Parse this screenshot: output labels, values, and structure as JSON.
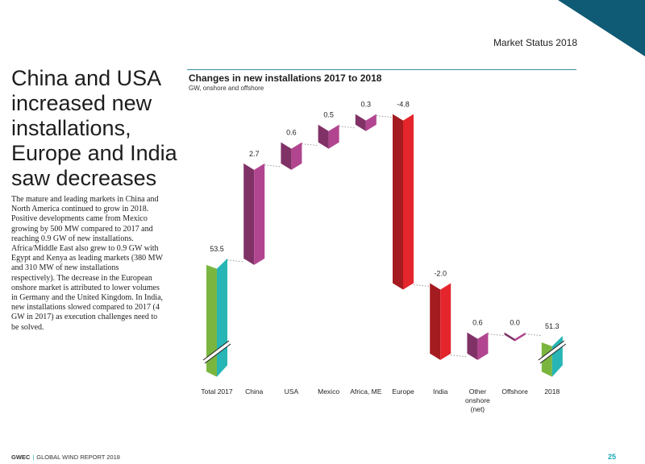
{
  "header": {
    "label": "Market Status 2018"
  },
  "headline": "China and USA increased new installations, Europe and India saw decreases",
  "body": "The mature and leading markets in China and North America continued to grow in 2018. Positive developments came from Mexico growing by 500 MW compared to 2017 and reaching 0.9 GW of new installations. Africa/Middle East also grew to 0.9 GW with Egypt and Kenya as leading markets (380 MW and 310 MW of new installations respectively). The decrease in the European onshore market is attributed to lower volumes in Germany and the United Kingdom. In India, new installations slowed compared to 2017 (4 GW in 2017) as execution challenges need to be solved.",
  "footer": {
    "brand": "GWEC",
    "separator": "|",
    "report": "GLOBAL WIND REPORT 2018",
    "page": "25"
  },
  "colors": {
    "accent": "#1aa6b7",
    "corner": "#0f5a74",
    "increase": "#b2458f",
    "decrease": "#e4252c",
    "total_green": "#7ab63f",
    "total_teal": "#27b5b5"
  },
  "chart_data": {
    "type": "waterfall",
    "title": "Changes in new installations 2017 to 2018",
    "subtitle": "GW, onshore and offshore",
    "axis_break": true,
    "categories": [
      "Total 2017",
      "China",
      "USA",
      "Mexico",
      "Africa, ME",
      "Europe",
      "India",
      "Other onshore (net)",
      "Offshore",
      "2018"
    ],
    "values": [
      53.5,
      2.7,
      0.6,
      0.5,
      0.3,
      -4.8,
      -2.0,
      0.6,
      0.0,
      51.3
    ],
    "labels": [
      "53.5",
      "2.7",
      "0.6",
      "0.5",
      "0.3",
      "-4.8",
      "-2.0",
      "0.6",
      "0.0",
      "51.3"
    ],
    "kinds": [
      "total",
      "increase",
      "increase",
      "increase",
      "increase",
      "decrease",
      "decrease",
      "increase",
      "increase",
      "total"
    ],
    "ylim": [
      50.5,
      57.5
    ],
    "grid": false,
    "legend": "none"
  }
}
